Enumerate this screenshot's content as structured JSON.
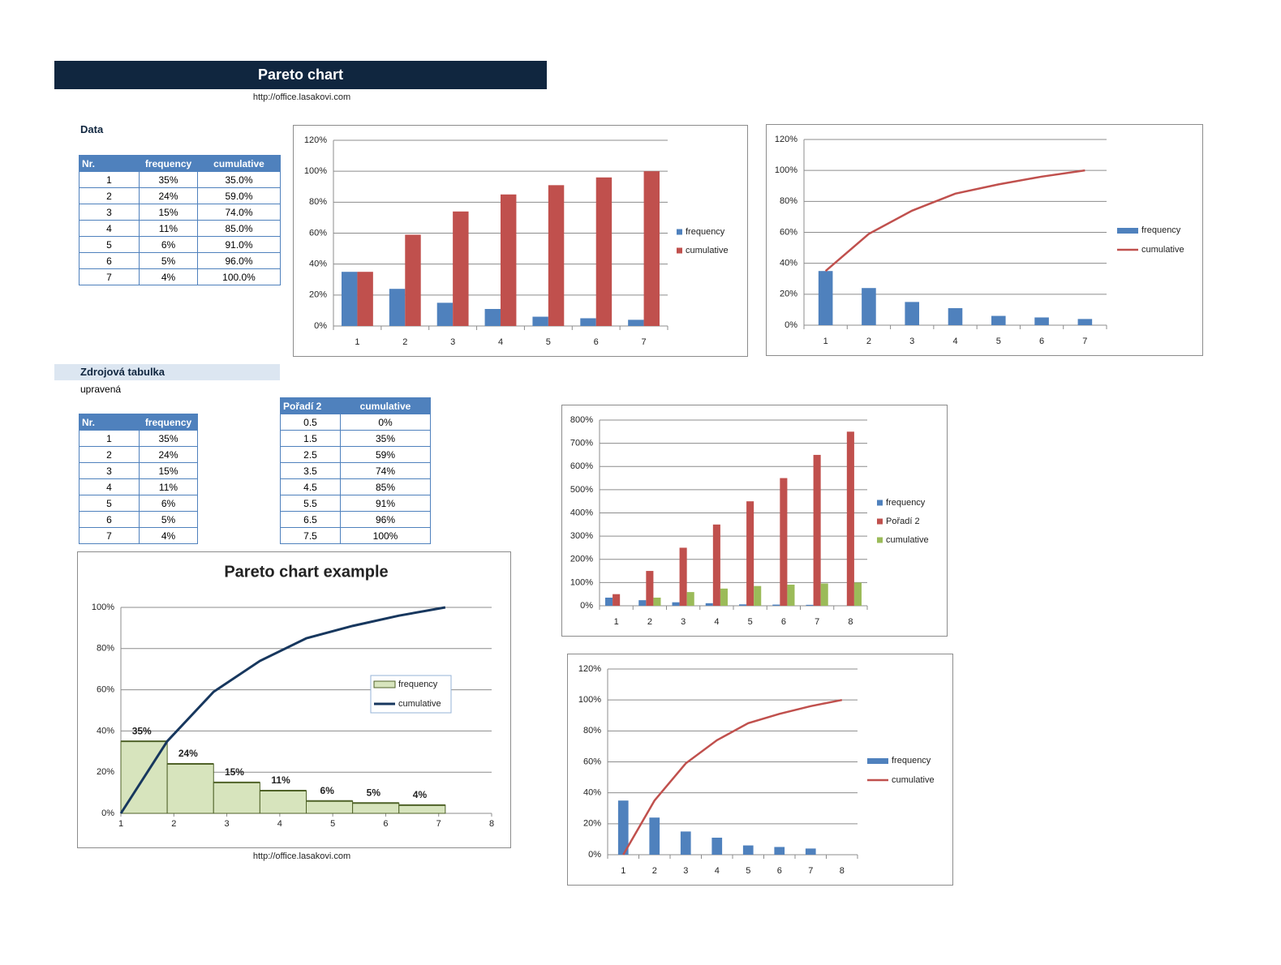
{
  "header": {
    "title": "Pareto chart",
    "url": "http://office.lasakovi.com"
  },
  "data_section": {
    "label": "Data",
    "table": {
      "columns": [
        "Nr.",
        "frequency",
        "cumulative"
      ],
      "rows": [
        [
          "1",
          "35%",
          "35.0%"
        ],
        [
          "2",
          "24%",
          "59.0%"
        ],
        [
          "3",
          "15%",
          "74.0%"
        ],
        [
          "4",
          "11%",
          "85.0%"
        ],
        [
          "5",
          "6%",
          "91.0%"
        ],
        [
          "6",
          "5%",
          "96.0%"
        ],
        [
          "7",
          "4%",
          "100.0%"
        ]
      ]
    }
  },
  "source_section": {
    "label": "Zdrojová tabulka",
    "note": "upravená",
    "table": {
      "columns": [
        "Nr.",
        "frequency"
      ],
      "rows": [
        [
          "1",
          "35%"
        ],
        [
          "2",
          "24%"
        ],
        [
          "3",
          "15%"
        ],
        [
          "4",
          "11%"
        ],
        [
          "5",
          "6%"
        ],
        [
          "6",
          "5%"
        ],
        [
          "7",
          "4%"
        ]
      ]
    },
    "table2": {
      "columns": [
        "Pořadí 2",
        "cumulative"
      ],
      "rows": [
        [
          "0.5",
          "0%"
        ],
        [
          "1.5",
          "35%"
        ],
        [
          "2.5",
          "59%"
        ],
        [
          "3.5",
          "74%"
        ],
        [
          "4.5",
          "85%"
        ],
        [
          "5.5",
          "91%"
        ],
        [
          "6.5",
          "96%"
        ],
        [
          "7.5",
          "100%"
        ]
      ]
    }
  },
  "footer": {
    "url": "http://office.lasakovi.com"
  },
  "chart_data": [
    {
      "type": "bar",
      "categories": [
        1,
        2,
        3,
        4,
        5,
        6,
        7
      ],
      "series": [
        {
          "name": "frequency",
          "color": "#4f81bd",
          "values": [
            35,
            24,
            15,
            11,
            6,
            5,
            4
          ]
        },
        {
          "name": "cumulative",
          "color": "#c0504d",
          "values": [
            35,
            59,
            74,
            85,
            91,
            96,
            100
          ]
        }
      ],
      "ylim": [
        0,
        120
      ],
      "yticks": [
        {
          "value": 0,
          "label": "0%"
        },
        {
          "value": 20,
          "label": "20%"
        },
        {
          "value": 40,
          "label": "40%"
        },
        {
          "value": 60,
          "label": "60%"
        },
        {
          "value": 80,
          "label": "80%"
        },
        {
          "value": 100,
          "label": "100%"
        },
        {
          "value": 120,
          "label": "120%"
        }
      ],
      "grid": true,
      "legend": "right"
    },
    {
      "type": "combo",
      "categories": [
        1,
        2,
        3,
        4,
        5,
        6,
        7
      ],
      "series": [
        {
          "name": "frequency",
          "kind": "bar",
          "color": "#4f81bd",
          "values": [
            35,
            24,
            15,
            11,
            6,
            5,
            4
          ]
        },
        {
          "name": "cumulative",
          "kind": "line",
          "color": "#c0504d",
          "values": [
            35,
            59,
            74,
            85,
            91,
            96,
            100
          ]
        }
      ],
      "ylim": [
        0,
        120
      ],
      "yticks": [
        {
          "value": 0,
          "label": "0%"
        },
        {
          "value": 20,
          "label": "20%"
        },
        {
          "value": 40,
          "label": "40%"
        },
        {
          "value": 60,
          "label": "60%"
        },
        {
          "value": 80,
          "label": "80%"
        },
        {
          "value": 100,
          "label": "100%"
        },
        {
          "value": 120,
          "label": "120%"
        }
      ],
      "grid": true,
      "legend": "right"
    },
    {
      "type": "bar",
      "categories": [
        1,
        2,
        3,
        4,
        5,
        6,
        7,
        8
      ],
      "series": [
        {
          "name": "frequency",
          "color": "#4f81bd",
          "values": [
            35,
            24,
            15,
            11,
            6,
            5,
            4,
            null
          ]
        },
        {
          "name": "Pořadí 2",
          "color": "#c0504d",
          "values": [
            50,
            150,
            250,
            350,
            450,
            550,
            650,
            750
          ]
        },
        {
          "name": "cumulative",
          "color": "#9bbb59",
          "values": [
            0,
            35,
            59,
            74,
            85,
            91,
            96,
            100
          ]
        }
      ],
      "ylim": [
        0,
        800
      ],
      "yticks": [
        {
          "value": 0,
          "label": "0%"
        },
        {
          "value": 100,
          "label": "100%"
        },
        {
          "value": 200,
          "label": "200%"
        },
        {
          "value": 300,
          "label": "300%"
        },
        {
          "value": 400,
          "label": "400%"
        },
        {
          "value": 500,
          "label": "500%"
        },
        {
          "value": 600,
          "label": "600%"
        },
        {
          "value": 700,
          "label": "700%"
        },
        {
          "value": 800,
          "label": "800%"
        }
      ],
      "grid": true,
      "legend": "right"
    },
    {
      "type": "pareto",
      "title": "Pareto chart  example",
      "series": [
        {
          "name": "frequency",
          "kind": "bar",
          "color": "#d7e4bd",
          "edge_color": "#4f6228",
          "values": [
            35,
            24,
            15,
            11,
            6,
            5,
            4
          ],
          "value_labels": [
            "35%",
            "24%",
            "15%",
            "11%",
            "6%",
            "5%",
            "4%"
          ]
        },
        {
          "name": "cumulative",
          "kind": "line",
          "color": "#17375e",
          "values": [
            0,
            35,
            59,
            74,
            85,
            91,
            96,
            100
          ]
        }
      ],
      "xlim": [
        1,
        8
      ],
      "xticks": [
        1,
        2,
        3,
        4,
        5,
        6,
        7,
        8
      ],
      "ylim": [
        0,
        100
      ],
      "yticks": [
        {
          "value": 0,
          "label": "0%"
        },
        {
          "value": 20,
          "label": "20%"
        },
        {
          "value": 40,
          "label": "40%"
        },
        {
          "value": 60,
          "label": "60%"
        },
        {
          "value": 80,
          "label": "80%"
        },
        {
          "value": 100,
          "label": "100%"
        }
      ],
      "grid": true,
      "legend": "right"
    },
    {
      "type": "combo",
      "categories": [
        1,
        2,
        3,
        4,
        5,
        6,
        7,
        8
      ],
      "series": [
        {
          "name": "frequency",
          "kind": "bar",
          "color": "#4f81bd",
          "values": [
            35,
            24,
            15,
            11,
            6,
            5,
            4,
            null
          ]
        },
        {
          "name": "cumulative",
          "kind": "line",
          "color": "#c0504d",
          "values": [
            0,
            35,
            59,
            74,
            85,
            91,
            96,
            100
          ]
        }
      ],
      "ylim": [
        0,
        120
      ],
      "yticks": [
        {
          "value": 0,
          "label": "0%"
        },
        {
          "value": 20,
          "label": "20%"
        },
        {
          "value": 40,
          "label": "40%"
        },
        {
          "value": 60,
          "label": "60%"
        },
        {
          "value": 80,
          "label": "80%"
        },
        {
          "value": 100,
          "label": "100%"
        },
        {
          "value": 120,
          "label": "120%"
        }
      ],
      "grid": true,
      "legend": "right"
    }
  ]
}
